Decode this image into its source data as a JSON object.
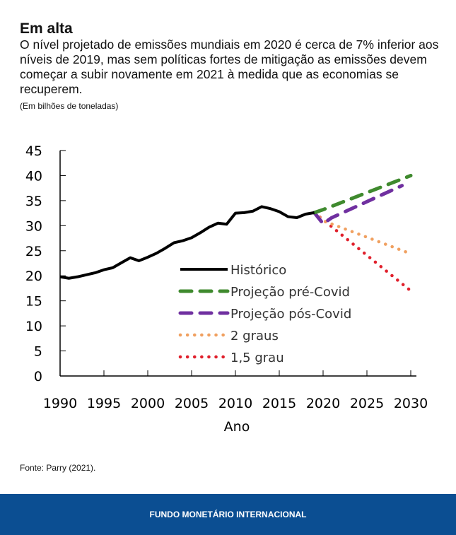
{
  "header": {
    "title": "Em alta",
    "subtitle": "O nível projetado de emissões mundiais em 2020 é cerca de 7% inferior aos níveis de 2019, mas sem políticas fortes de mitigação as emissões devem começar a subir novamente em 2021 à medida que as economias se recuperem.",
    "unit": "(Em bilhões de toneladas)"
  },
  "source": "Fonte: Parry (2021).",
  "footer": "FUNDO MONETÁRIO INTERNACIONAL",
  "chart_data": {
    "type": "line",
    "xlabel": "Ano",
    "ylabel": "",
    "xlim": [
      1990,
      2030
    ],
    "ylim": [
      0,
      45
    ],
    "xticks": [
      1990,
      1995,
      2000,
      2005,
      2010,
      2015,
      2020,
      2025,
      2030
    ],
    "yticks": [
      0,
      5,
      10,
      15,
      20,
      25,
      30,
      35,
      40,
      45
    ],
    "legend_position": "center-right",
    "series": [
      {
        "name": "Histórico",
        "color": "#000000",
        "style": "solid",
        "x": [
          1990,
          1991,
          1992,
          1993,
          1994,
          1995,
          1996,
          1997,
          1998,
          1999,
          2000,
          2001,
          2002,
          2003,
          2004,
          2005,
          2006,
          2007,
          2008,
          2009,
          2010,
          2011,
          2012,
          2013,
          2014,
          2015,
          2016,
          2017,
          2018,
          2019
        ],
        "y": [
          19.8,
          19.5,
          19.8,
          20.2,
          20.6,
          21.2,
          21.6,
          22.6,
          23.6,
          23.0,
          23.7,
          24.5,
          25.5,
          26.6,
          27.0,
          27.6,
          28.6,
          29.7,
          30.5,
          30.3,
          32.5,
          32.6,
          32.9,
          33.8,
          33.4,
          32.8,
          31.8,
          31.6,
          32.3,
          32.6
        ]
      },
      {
        "name": "Projeção pré-Covid",
        "color": "#3f8a2e",
        "style": "dash",
        "x": [
          2019,
          2020,
          2030
        ],
        "y": [
          32.6,
          33.2,
          40.0
        ]
      },
      {
        "name": "Projeção pós-Covid",
        "color": "#7030a0",
        "style": "dash",
        "x": [
          2019,
          2020,
          2021,
          2029
        ],
        "y": [
          32.6,
          30.4,
          31.6,
          38.0
        ]
      },
      {
        "name": "2 graus",
        "color": "#f0a060",
        "style": "dot",
        "x": [
          2019,
          2020,
          2030
        ],
        "y": [
          32.6,
          31.0,
          24.4
        ]
      },
      {
        "name": "1,5 grau",
        "color": "#e0202c",
        "style": "dot",
        "x": [
          2019,
          2030
        ],
        "y": [
          32.6,
          17.0
        ]
      }
    ]
  }
}
